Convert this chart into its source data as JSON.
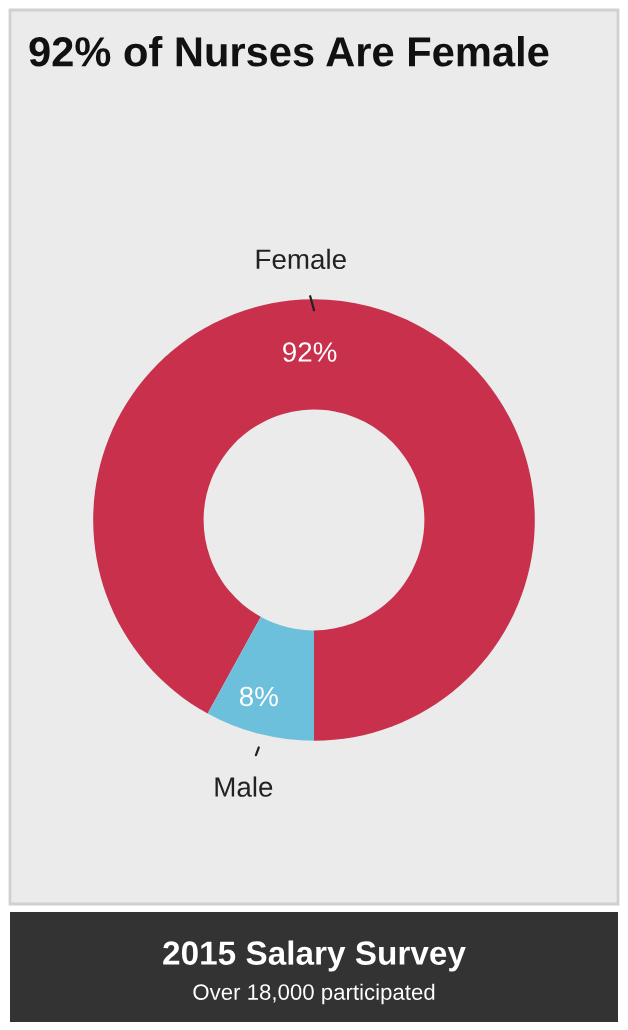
{
  "chart_data": {
    "type": "donut",
    "title": "92% of Nurses Are Female",
    "categories": [
      "Female",
      "Male"
    ],
    "values": [
      92,
      8
    ],
    "colors": [
      "#c8304c",
      "#6dc0dc"
    ],
    "value_labels": [
      "92%",
      "8%"
    ],
    "annotations": [
      "2015 Salary Survey",
      "Over 18,000 participated"
    ]
  }
}
